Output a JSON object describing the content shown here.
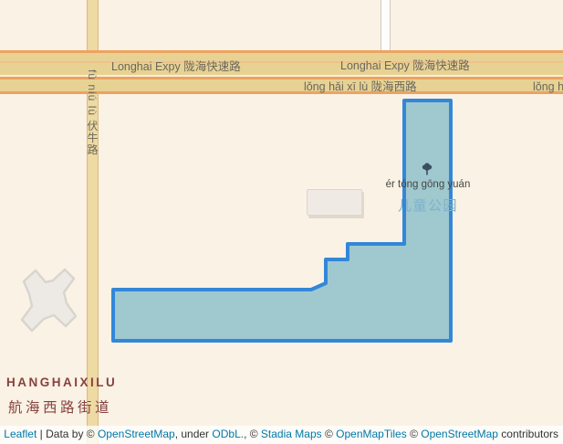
{
  "colors": {
    "map-bg": "#faf2e5",
    "road-tan": "#e7d294",
    "road-orange": "#eda35f",
    "road-orange-light": "#eec28a",
    "road-cream-line": "#f8efd8",
    "vroad-fill": "#eedaa3",
    "vroad-edge": "#dbba82",
    "wroad-fill": "#fdfdfc",
    "wroad-edge": "#cfccc3",
    "road-label": "#6b675b",
    "district": "#86423e",
    "building-fill": "#efeae4",
    "building-edge": "#dcd7d0",
    "cross-fill": "#edeae5",
    "cross-edge": "#d9d5ce",
    "park-fill": "#9fc8cf",
    "park-stroke": "#3387d8",
    "park-cjk": "#7fb1c9",
    "park-pinyin": "#474741",
    "tree": "#3a4e60",
    "attr-text": "#333333",
    "attr-link": "#0078a8",
    "attr-bg": "rgba(255,255,255,0.78)"
  },
  "roads": {
    "expressway_label_left": "Longhai Expy 陇海快速路",
    "expressway_label_right": "Longhai Expy 陇海快速路",
    "west_road_label_left": "lǒng hǎi xī lù 陇海西路",
    "west_road_label_right": "lǒng hǎi xī lù 陇海西路",
    "vertical_road_label": "fù niú lù 伏牛路"
  },
  "district": {
    "latin": "HANGHAIXILU",
    "cjk": "航海西路街道"
  },
  "park": {
    "pinyin": "ér tóng gōng yuán",
    "cjk": "儿童公园",
    "polygon_points": "443,110 494,110 494,373 124,373 124,317 341,317 357,310 357,284 381,284 381,267 443,267"
  },
  "attribution": {
    "segments": [
      {
        "text": "Leaflet",
        "link": true,
        "name": "leaflet-link"
      },
      {
        "text": " | Data by © ",
        "link": false,
        "name": "attribution-text"
      },
      {
        "text": "OpenStreetMap",
        "link": true,
        "name": "openstreetmap-link"
      },
      {
        "text": ", under ",
        "link": false,
        "name": "attribution-text"
      },
      {
        "text": "ODbL.",
        "link": true,
        "name": "odbl-link"
      },
      {
        "text": ", © ",
        "link": false,
        "name": "attribution-text"
      },
      {
        "text": "Stadia Maps",
        "link": true,
        "name": "stadia-maps-link"
      },
      {
        "text": " © ",
        "link": false,
        "name": "attribution-text"
      },
      {
        "text": "OpenMapTiles",
        "link": true,
        "name": "openmaptiles-link"
      },
      {
        "text": " © ",
        "link": false,
        "name": "attribution-text"
      },
      {
        "text": "OpenStreetMap",
        "link": true,
        "name": "openstreetmap-contributors-link"
      },
      {
        "text": " contributors",
        "link": false,
        "name": "attribution-text"
      }
    ]
  }
}
